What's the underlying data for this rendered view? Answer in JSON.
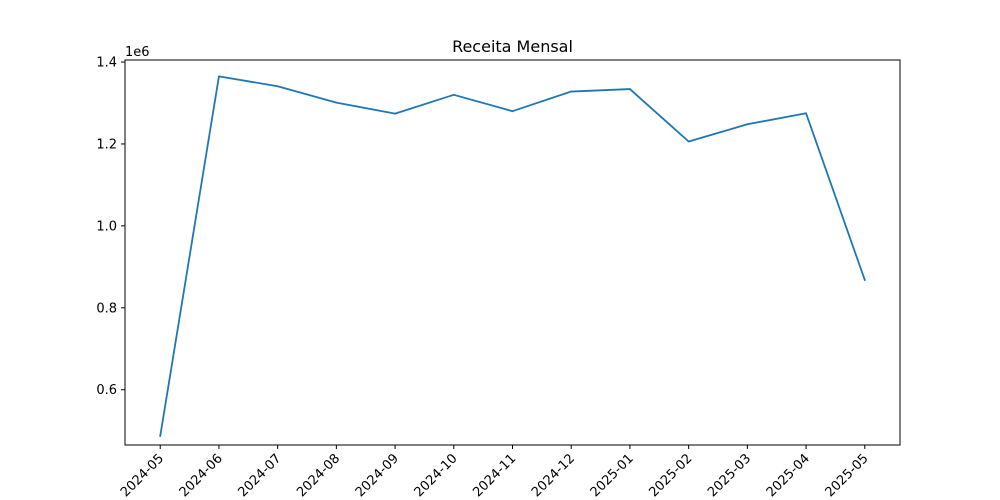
{
  "chart_data": {
    "type": "line",
    "title": "Receita Mensal",
    "xlabel": "",
    "ylabel": "",
    "y_scale_label": "1e6",
    "x": [
      "2024-05",
      "2024-06",
      "2024-07",
      "2024-08",
      "2024-09",
      "2024-10",
      "2024-11",
      "2024-12",
      "2025-01",
      "2025-02",
      "2025-03",
      "2025-04",
      "2025-05"
    ],
    "series": [
      {
        "color": "#1f77b4",
        "values": [
          487000,
          1365000,
          1341000,
          1301000,
          1274000,
          1320000,
          1280000,
          1328000,
          1334000,
          1206000,
          1248000,
          1275000,
          868000
        ]
      }
    ],
    "ylim": [
      465000,
      1405000
    ],
    "yticks": [
      600000,
      800000,
      1000000,
      1200000,
      1400000
    ],
    "ytick_labels": [
      "0.6",
      "0.8",
      "1.0",
      "1.2",
      "1.4"
    ],
    "grid": false,
    "legend": "none"
  }
}
